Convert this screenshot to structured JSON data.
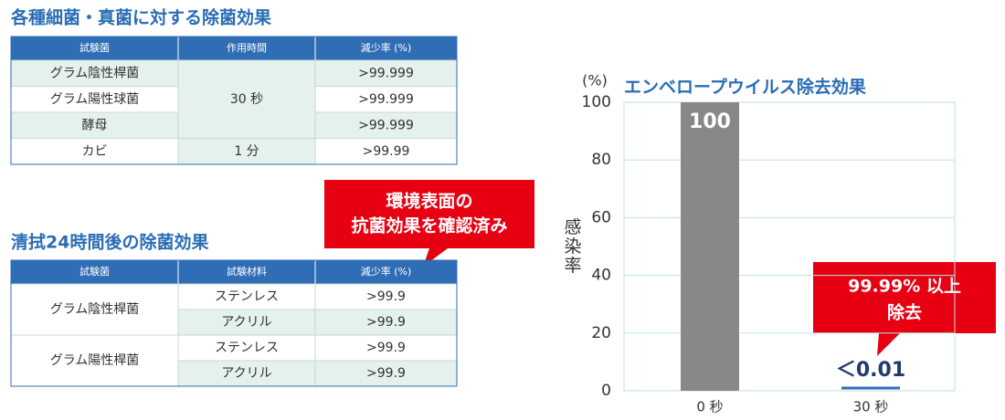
{
  "table1": {
    "title": "各種細菌・真菌に対する除菌効果",
    "header": [
      "試験菌",
      "作用時間",
      "減少率 (%)"
    ],
    "groups": [
      {
        "time": "30 秒",
        "rows": [
          {
            "organism": "グラム陰性桿菌",
            "rate": ">99.999"
          },
          {
            "organism": "グラム陽性球菌",
            "rate": ">99.999"
          },
          {
            "organism": "酵母",
            "rate": ">99.999"
          }
        ]
      },
      {
        "time": "1 分",
        "rows": [
          {
            "organism": "カビ",
            "rate": ">99.99"
          }
        ]
      }
    ]
  },
  "table2": {
    "title": "清拭24時間後の除菌効果",
    "header": [
      "試験菌",
      "試験材料",
      "減少率 (%)"
    ],
    "groups": [
      {
        "organism": "グラム陰性桿菌",
        "rows": [
          {
            "material": "ステンレス",
            "rate": ">99.9"
          },
          {
            "material": "アクリル",
            "rate": ">99.9"
          }
        ]
      },
      {
        "organism": "グラム陽性桿菌",
        "rows": [
          {
            "material": "ステンレス",
            "rate": ">99.9"
          },
          {
            "material": "アクリル",
            "rate": ">99.9"
          }
        ]
      }
    ]
  },
  "callout": {
    "lines": [
      "環境表面の",
      "抗菌効果を確認済み"
    ]
  },
  "chart_data": {
    "type": "bar",
    "title": "エンベロープウイルス除去効果",
    "y_unit": "(%)",
    "ylabel": "感染率",
    "categories": [
      "0 秒",
      "30 秒"
    ],
    "values": [
      100,
      0.01
    ],
    "value_labels": [
      "100",
      "＜0.01"
    ],
    "color": "#888888",
    "ylim": [
      0,
      100
    ],
    "yticks": [
      0,
      20,
      40,
      60,
      80,
      100
    ],
    "grid": true,
    "annotation": {
      "lines": [
        "99.99% 以上",
        "除去"
      ]
    }
  }
}
